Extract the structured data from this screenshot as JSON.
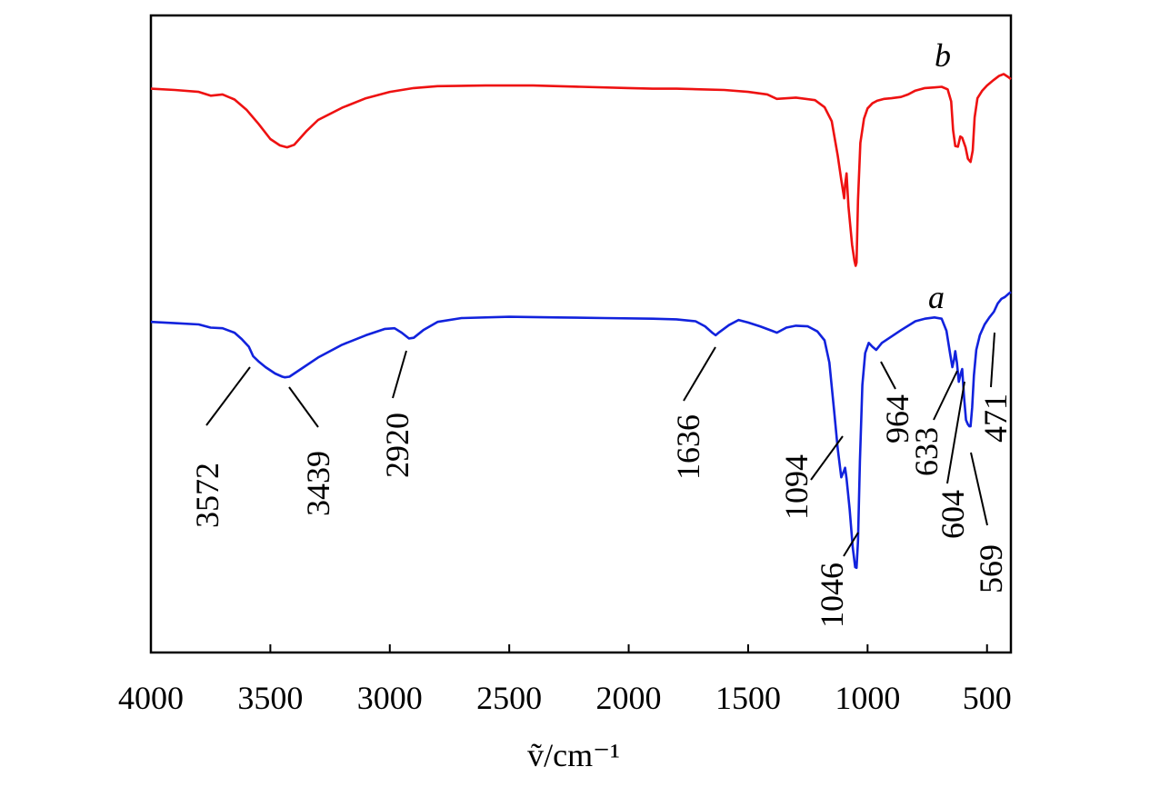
{
  "chart_data": {
    "type": "line",
    "title": "",
    "xlabel": "ṽ/cm⁻¹",
    "ylabel": "",
    "xlim": [
      4000,
      400
    ],
    "x_reversed": true,
    "xticks": [
      4000,
      3500,
      3000,
      2500,
      2000,
      1500,
      1000,
      500
    ],
    "xtick_labels": [
      "4000",
      "3500",
      "3000",
      "2500",
      "2000",
      "1500",
      "1000",
      "500"
    ],
    "ylim": [
      0,
      100
    ],
    "grid": false,
    "series": [
      {
        "name": "b",
        "color": "#ee1111",
        "points": [
          [
            4000,
            88.5
          ],
          [
            3900,
            88.3
          ],
          [
            3800,
            88.0
          ],
          [
            3750,
            87.4
          ],
          [
            3700,
            87.6
          ],
          [
            3650,
            86.8
          ],
          [
            3600,
            85.2
          ],
          [
            3550,
            83.0
          ],
          [
            3500,
            80.6
          ],
          [
            3460,
            79.6
          ],
          [
            3430,
            79.3
          ],
          [
            3400,
            79.7
          ],
          [
            3350,
            81.8
          ],
          [
            3300,
            83.6
          ],
          [
            3200,
            85.5
          ],
          [
            3100,
            87.0
          ],
          [
            3000,
            88.0
          ],
          [
            2900,
            88.6
          ],
          [
            2800,
            88.9
          ],
          [
            2600,
            89.0
          ],
          [
            2400,
            89.0
          ],
          [
            2200,
            88.8
          ],
          [
            2000,
            88.6
          ],
          [
            1900,
            88.5
          ],
          [
            1800,
            88.5
          ],
          [
            1700,
            88.4
          ],
          [
            1600,
            88.3
          ],
          [
            1500,
            88.0
          ],
          [
            1420,
            87.6
          ],
          [
            1380,
            86.9
          ],
          [
            1300,
            87.1
          ],
          [
            1220,
            86.7
          ],
          [
            1180,
            85.6
          ],
          [
            1150,
            83.4
          ],
          [
            1125,
            78.0
          ],
          [
            1110,
            74.2
          ],
          [
            1098,
            71.3
          ],
          [
            1094,
            73.4
          ],
          [
            1088,
            75.2
          ],
          [
            1080,
            70.0
          ],
          [
            1065,
            64.0
          ],
          [
            1055,
            61.5
          ],
          [
            1050,
            60.7
          ],
          [
            1046,
            61.2
          ],
          [
            1040,
            71.0
          ],
          [
            1030,
            80.0
          ],
          [
            1015,
            83.8
          ],
          [
            1000,
            85.4
          ],
          [
            980,
            86.2
          ],
          [
            960,
            86.6
          ],
          [
            930,
            86.9
          ],
          [
            900,
            87.0
          ],
          [
            860,
            87.2
          ],
          [
            830,
            87.6
          ],
          [
            800,
            88.2
          ],
          [
            760,
            88.6
          ],
          [
            720,
            88.7
          ],
          [
            690,
            88.8
          ],
          [
            665,
            88.4
          ],
          [
            650,
            86.5
          ],
          [
            642,
            82.0
          ],
          [
            633,
            79.5
          ],
          [
            622,
            79.4
          ],
          [
            612,
            81.0
          ],
          [
            604,
            80.8
          ],
          [
            590,
            79.3
          ],
          [
            580,
            77.5
          ],
          [
            569,
            77.0
          ],
          [
            560,
            78.8
          ],
          [
            552,
            84.0
          ],
          [
            540,
            87.0
          ],
          [
            520,
            88.2
          ],
          [
            500,
            89.0
          ],
          [
            471,
            89.9
          ],
          [
            450,
            90.5
          ],
          [
            430,
            90.8
          ],
          [
            410,
            90.3
          ],
          [
            400,
            90.0
          ]
        ]
      },
      {
        "name": "a",
        "color": "#1122dd",
        "points": [
          [
            4000,
            51.9
          ],
          [
            3900,
            51.7
          ],
          [
            3800,
            51.5
          ],
          [
            3750,
            51.0
          ],
          [
            3700,
            50.9
          ],
          [
            3650,
            50.2
          ],
          [
            3620,
            49.2
          ],
          [
            3590,
            48.0
          ],
          [
            3572,
            46.5
          ],
          [
            3550,
            45.7
          ],
          [
            3520,
            44.8
          ],
          [
            3480,
            43.8
          ],
          [
            3450,
            43.3
          ],
          [
            3439,
            43.2
          ],
          [
            3420,
            43.3
          ],
          [
            3380,
            44.3
          ],
          [
            3300,
            46.3
          ],
          [
            3200,
            48.3
          ],
          [
            3100,
            49.8
          ],
          [
            3020,
            50.8
          ],
          [
            2980,
            50.9
          ],
          [
            2950,
            50.2
          ],
          [
            2920,
            49.3
          ],
          [
            2900,
            49.4
          ],
          [
            2860,
            50.6
          ],
          [
            2800,
            51.9
          ],
          [
            2700,
            52.5
          ],
          [
            2500,
            52.7
          ],
          [
            2300,
            52.6
          ],
          [
            2100,
            52.5
          ],
          [
            1900,
            52.4
          ],
          [
            1800,
            52.3
          ],
          [
            1720,
            52.0
          ],
          [
            1680,
            51.2
          ],
          [
            1650,
            50.2
          ],
          [
            1636,
            49.8
          ],
          [
            1620,
            50.3
          ],
          [
            1580,
            51.4
          ],
          [
            1540,
            52.2
          ],
          [
            1500,
            51.8
          ],
          [
            1450,
            51.2
          ],
          [
            1400,
            50.5
          ],
          [
            1380,
            50.2
          ],
          [
            1340,
            51.0
          ],
          [
            1300,
            51.3
          ],
          [
            1250,
            51.2
          ],
          [
            1210,
            50.4
          ],
          [
            1180,
            49.0
          ],
          [
            1160,
            45.5
          ],
          [
            1140,
            38.0
          ],
          [
            1125,
            32.0
          ],
          [
            1110,
            27.5
          ],
          [
            1100,
            28.4
          ],
          [
            1094,
            29.0
          ],
          [
            1088,
            27.3
          ],
          [
            1075,
            22.5
          ],
          [
            1062,
            16.5
          ],
          [
            1052,
            13.4
          ],
          [
            1046,
            13.3
          ],
          [
            1040,
            17.5
          ],
          [
            1032,
            30.0
          ],
          [
            1022,
            42.0
          ],
          [
            1010,
            47.0
          ],
          [
            995,
            48.6
          ],
          [
            980,
            48.0
          ],
          [
            964,
            47.5
          ],
          [
            940,
            48.6
          ],
          [
            900,
            49.6
          ],
          [
            860,
            50.6
          ],
          [
            800,
            52.0
          ],
          [
            760,
            52.4
          ],
          [
            720,
            52.6
          ],
          [
            690,
            52.4
          ],
          [
            670,
            50.5
          ],
          [
            655,
            47.0
          ],
          [
            645,
            44.8
          ],
          [
            638,
            46.0
          ],
          [
            633,
            47.3
          ],
          [
            626,
            45.5
          ],
          [
            618,
            42.5
          ],
          [
            610,
            43.8
          ],
          [
            604,
            44.5
          ],
          [
            596,
            40.0
          ],
          [
            588,
            36.5
          ],
          [
            580,
            35.8
          ],
          [
            574,
            35.5
          ],
          [
            569,
            35.5
          ],
          [
            562,
            38.5
          ],
          [
            555,
            43.5
          ],
          [
            545,
            47.5
          ],
          [
            530,
            49.8
          ],
          [
            510,
            51.5
          ],
          [
            490,
            52.6
          ],
          [
            471,
            53.5
          ],
          [
            455,
            54.8
          ],
          [
            440,
            55.5
          ],
          [
            425,
            55.8
          ],
          [
            410,
            56.3
          ],
          [
            400,
            56.6
          ]
        ]
      }
    ],
    "series_labels": [
      {
        "text": "b",
        "series": "b"
      },
      {
        "text": "a",
        "series": "a"
      }
    ],
    "annotations": [
      {
        "label": "3572",
        "x": 3572
      },
      {
        "label": "3439",
        "x": 3439
      },
      {
        "label": "2920",
        "x": 2920
      },
      {
        "label": "1636",
        "x": 1636
      },
      {
        "label": "1094",
        "x": 1094
      },
      {
        "label": "1046",
        "x": 1046
      },
      {
        "label": "964",
        "x": 964
      },
      {
        "label": "633",
        "x": 633
      },
      {
        "label": "604",
        "x": 604
      },
      {
        "label": "569",
        "x": 569
      },
      {
        "label": "471",
        "x": 471
      }
    ]
  }
}
